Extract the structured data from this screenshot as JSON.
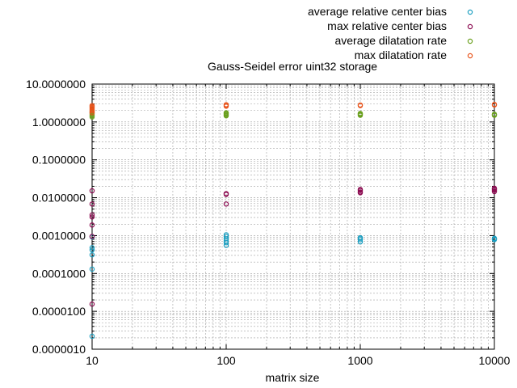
{
  "chart_data": {
    "type": "scatter",
    "title": "Gauss-Seidel error uint32 storage",
    "xlabel": "matrix size",
    "ylabel": "",
    "x_scale": "log",
    "y_scale": "log",
    "xlim": [
      10,
      10000
    ],
    "ylim": [
      1e-06,
      10
    ],
    "x_ticks": [
      "10",
      "100",
      "1000",
      "10000"
    ],
    "y_ticks": [
      "0.0000010",
      "0.0000100",
      "0.0001000",
      "0.0010000",
      "0.0100000",
      "0.1000000",
      "1.0000000",
      "10.0000000"
    ],
    "grid": true,
    "legend_position": "top-right",
    "series": [
      {
        "name": "average relative center bias",
        "color": "#1a9ec0",
        "points": [
          [
            10,
            2.2e-06
          ],
          [
            10,
            0.00013
          ],
          [
            10,
            0.00031
          ],
          [
            10,
            0.00042
          ],
          [
            10,
            0.00048
          ],
          [
            10,
            0.00092
          ],
          [
            100,
            0.00055
          ],
          [
            100,
            0.00065
          ],
          [
            100,
            0.00072
          ],
          [
            100,
            0.00082
          ],
          [
            100,
            0.00095
          ],
          [
            100,
            0.00105
          ],
          [
            1000,
            0.00068
          ],
          [
            1000,
            0.00078
          ],
          [
            1000,
            0.00085
          ],
          [
            1000,
            0.00088
          ],
          [
            10000,
            0.00078
          ],
          [
            10000,
            0.00082
          ],
          [
            10000,
            0.00085
          ]
        ]
      },
      {
        "name": "max relative center bias",
        "color": "#8b0a50",
        "points": [
          [
            10,
            1.55e-05
          ],
          [
            10,
            0.00095
          ],
          [
            10,
            0.0019
          ],
          [
            10,
            0.0031
          ],
          [
            10,
            0.0035
          ],
          [
            10,
            0.0068
          ],
          [
            10,
            0.0152
          ],
          [
            100,
            0.0068
          ],
          [
            100,
            0.0122
          ],
          [
            100,
            0.0128
          ],
          [
            1000,
            0.0135
          ],
          [
            1000,
            0.0142
          ],
          [
            1000,
            0.0155
          ],
          [
            1000,
            0.0165
          ],
          [
            10000,
            0.0145
          ],
          [
            10000,
            0.0158
          ],
          [
            10000,
            0.0168
          ],
          [
            10000,
            0.0178
          ]
        ]
      },
      {
        "name": "average dilatation rate",
        "color": "#6aa01e",
        "points": [
          [
            10,
            1.35
          ],
          [
            10,
            1.45
          ],
          [
            10,
            1.55
          ],
          [
            10,
            1.65
          ],
          [
            10,
            1.78
          ],
          [
            10,
            1.95
          ],
          [
            100,
            1.45
          ],
          [
            100,
            1.52
          ],
          [
            100,
            1.6
          ],
          [
            100,
            1.68
          ],
          [
            100,
            1.75
          ],
          [
            1000,
            1.5
          ],
          [
            1000,
            1.56
          ],
          [
            1000,
            1.62
          ],
          [
            1000,
            1.68
          ],
          [
            10000,
            1.5
          ],
          [
            10000,
            1.56
          ],
          [
            10000,
            1.6
          ]
        ]
      },
      {
        "name": "max dilatation rate",
        "color": "#e8531a",
        "points": [
          [
            10,
            1.75
          ],
          [
            10,
            1.95
          ],
          [
            10,
            2.1
          ],
          [
            10,
            2.25
          ],
          [
            10,
            2.4
          ],
          [
            10,
            2.55
          ],
          [
            10,
            2.7
          ],
          [
            100,
            2.6
          ],
          [
            100,
            2.75
          ],
          [
            100,
            2.85
          ],
          [
            1000,
            2.7
          ],
          [
            1000,
            2.8
          ],
          [
            10000,
            2.8
          ],
          [
            10000,
            2.9
          ]
        ]
      }
    ]
  }
}
